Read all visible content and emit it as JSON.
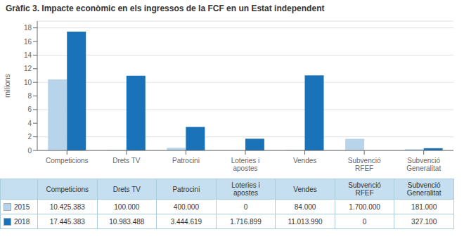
{
  "chart_data": {
    "type": "bar",
    "title": "Gràfic 3. Impacte econòmic en els ingressos de la FCF en un Estat independent",
    "ylabel": "milions",
    "categories": [
      "Competicions",
      "Drets TV",
      "Patrocini",
      "Loteries i\napostes",
      "Vendes",
      "Subvenció\nRFEF",
      "Subvenció\nGeneralitat"
    ],
    "series": [
      {
        "name": "2015",
        "color": "#b8d4ea",
        "values": [
          10.425383,
          0.1,
          0.4,
          0,
          0.084,
          1.7,
          0.181
        ],
        "value_labels": [
          "10.425.383",
          "100.000",
          "400.000",
          "0",
          "84.000",
          "1.700.000",
          "181.000"
        ]
      },
      {
        "name": "2018",
        "color": "#1a72b8",
        "values": [
          17.445383,
          10.983488,
          3.444619,
          1.716899,
          11.01399,
          0,
          0.3271
        ],
        "value_labels": [
          "17.445.383",
          "10.983.488",
          "3.444.619",
          "1.716.899",
          "11.013.990",
          "0",
          "327.100"
        ]
      }
    ],
    "ylim": [
      0,
      19
    ],
    "yticks": [
      0,
      2,
      4,
      6,
      8,
      10,
      12,
      14,
      16,
      18
    ],
    "grid": true
  }
}
